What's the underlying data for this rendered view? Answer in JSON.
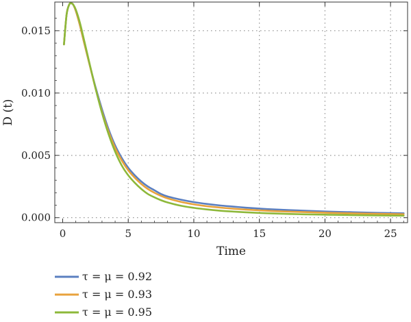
{
  "chart_data": {
    "type": "line",
    "title": "",
    "xlabel": "Time",
    "ylabel": "D (t)",
    "xlim": [
      -0.6,
      26.3
    ],
    "ylim": [
      -0.0004,
      0.0173
    ],
    "x_ticks": [
      0,
      5,
      10,
      15,
      20,
      25
    ],
    "x_tick_labels": [
      "0",
      "5",
      "10",
      "15",
      "20",
      "25"
    ],
    "y_ticks": [
      0,
      0.005,
      0.01,
      0.015
    ],
    "y_tick_labels": [
      "0.000",
      "0.005",
      "0.010",
      "0.015"
    ],
    "grid": "dotted",
    "legend_position": "bottom-left",
    "series": [
      {
        "name": "τ = μ = 0.92",
        "color": "#5b7fc0",
        "x": [
          0.1,
          0.3,
          0.5,
          0.65,
          0.8,
          1,
          1.3,
          1.6,
          2,
          2.5,
          3,
          3.5,
          4,
          4.5,
          5,
          5.5,
          6,
          6.5,
          7,
          7.5,
          8,
          9,
          10,
          11,
          12,
          13,
          14,
          15,
          16,
          18,
          20,
          22,
          24,
          26
        ],
        "y": [
          0.0139,
          0.0163,
          0.0171,
          0.0172,
          0.0171,
          0.0166,
          0.0155,
          0.0142,
          0.0125,
          0.0105,
          0.0087,
          0.0071,
          0.0058,
          0.0048,
          0.004,
          0.0034,
          0.0029,
          0.0025,
          0.0022,
          0.0019,
          0.0017,
          0.00145,
          0.00125,
          0.0011,
          0.00098,
          0.00089,
          0.0008,
          0.00073,
          0.00067,
          0.00058,
          0.0005,
          0.00044,
          0.00039,
          0.00035
        ]
      },
      {
        "name": "τ = μ = 0.93",
        "color": "#e8a23c",
        "x": [
          0.1,
          0.3,
          0.5,
          0.65,
          0.8,
          1,
          1.3,
          1.6,
          2,
          2.5,
          3,
          3.5,
          4,
          4.5,
          5,
          5.5,
          6,
          6.5,
          7,
          7.5,
          8,
          9,
          10,
          11,
          12,
          13,
          14,
          15,
          16,
          18,
          20,
          22,
          24,
          26
        ],
        "y": [
          0.0139,
          0.0163,
          0.0171,
          0.0172,
          0.0171,
          0.0166,
          0.0155,
          0.0142,
          0.0125,
          0.0104,
          0.0085,
          0.0069,
          0.0056,
          0.0046,
          0.0038,
          0.0032,
          0.0027,
          0.0023,
          0.002,
          0.00175,
          0.00155,
          0.00127,
          0.00107,
          0.00092,
          0.00081,
          0.00072,
          0.00065,
          0.00059,
          0.00053,
          0.00046,
          0.0004,
          0.00035,
          0.00031,
          0.00028
        ]
      },
      {
        "name": "τ = μ = 0.95",
        "color": "#8db83a",
        "x": [
          0.1,
          0.3,
          0.5,
          0.65,
          0.8,
          1,
          1.3,
          1.6,
          2,
          2.5,
          3,
          3.5,
          4,
          4.5,
          5,
          5.5,
          6,
          6.5,
          7,
          7.5,
          8,
          9,
          10,
          11,
          12,
          13,
          14,
          15,
          16,
          18,
          20,
          22,
          24,
          26
        ],
        "y": [
          0.0139,
          0.0163,
          0.0171,
          0.0172,
          0.0171,
          0.0167,
          0.0157,
          0.0144,
          0.0126,
          0.0104,
          0.0084,
          0.0067,
          0.0053,
          0.0042,
          0.0034,
          0.0028,
          0.0023,
          0.0019,
          0.00163,
          0.0014,
          0.00122,
          0.00096,
          0.00079,
          0.00066,
          0.00056,
          0.00049,
          0.00043,
          0.00038,
          0.00034,
          0.00028,
          0.00024,
          0.00021,
          0.00018,
          0.00016
        ]
      }
    ]
  }
}
